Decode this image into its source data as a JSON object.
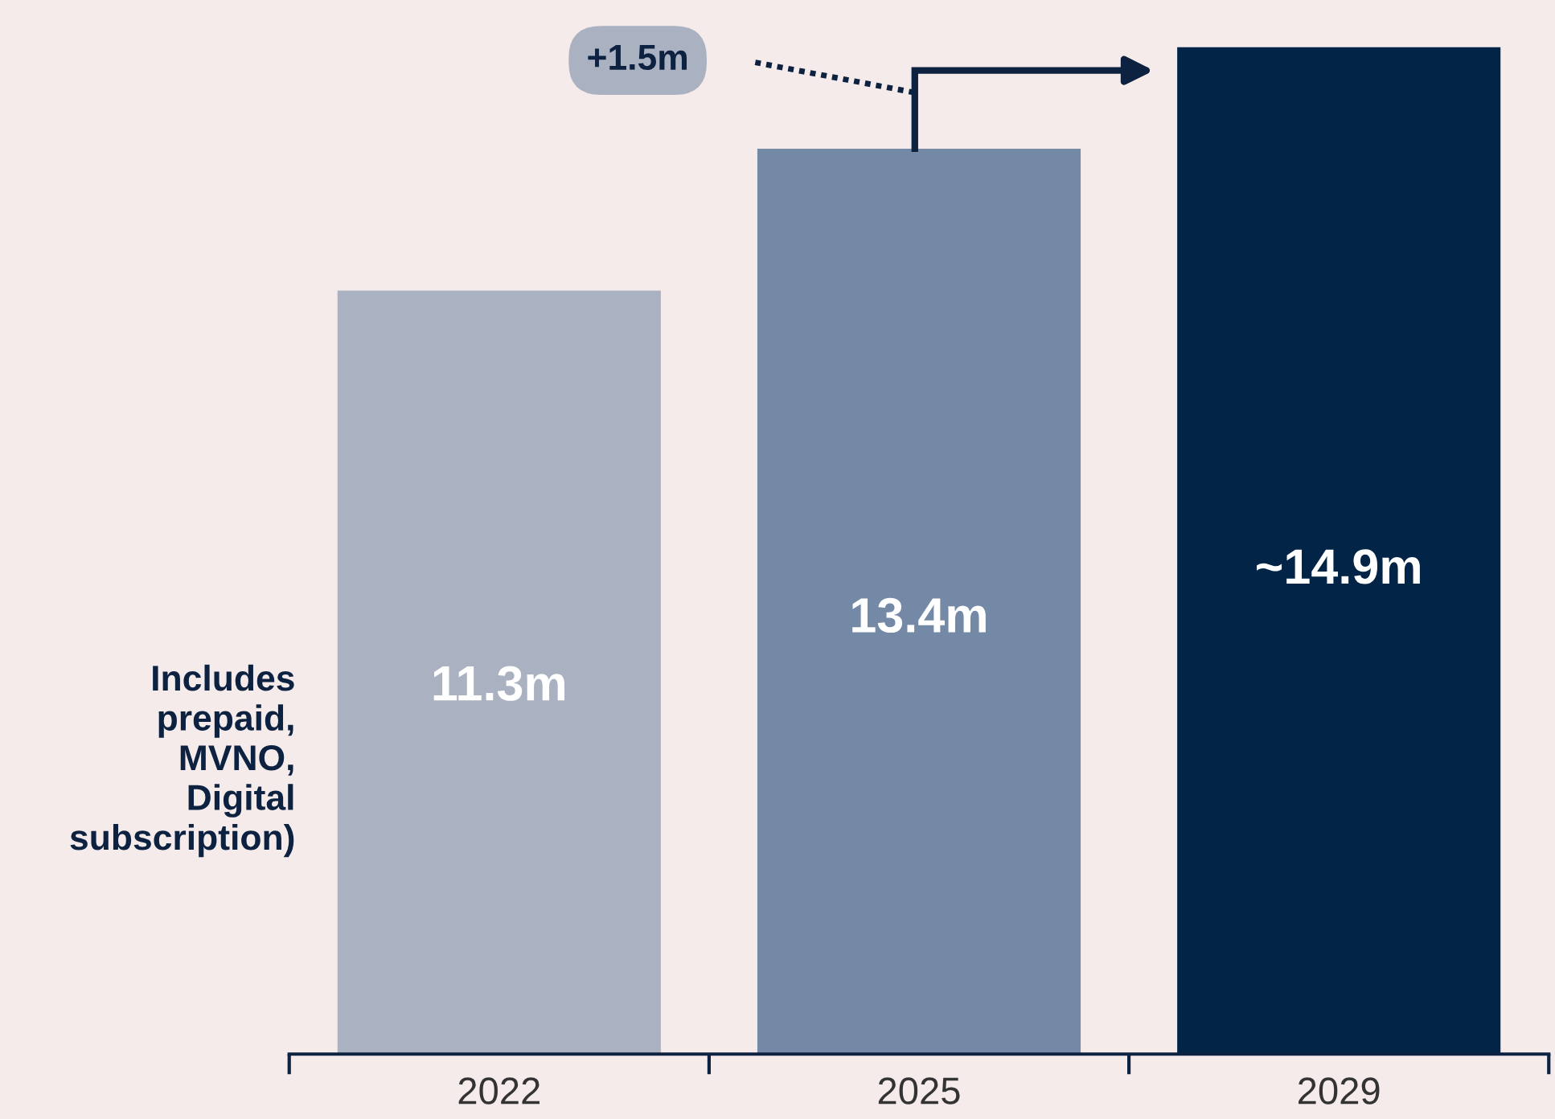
{
  "chart_data": {
    "type": "bar",
    "categories": [
      "2022",
      "2025",
      "2029"
    ],
    "values": [
      11.3,
      13.4,
      14.9
    ],
    "colors": [
      "#aab1c0",
      "#7489a6",
      "#022447"
    ],
    "value_labels": [
      "11.3m",
      "13.4m",
      "~14.9m"
    ],
    "annotations": [
      "+1.5m",
      "Includes\nprepaid,\nMVNO,\nDigital\nsubscription)"
    ],
    "grid": false,
    "legend": false
  }
}
